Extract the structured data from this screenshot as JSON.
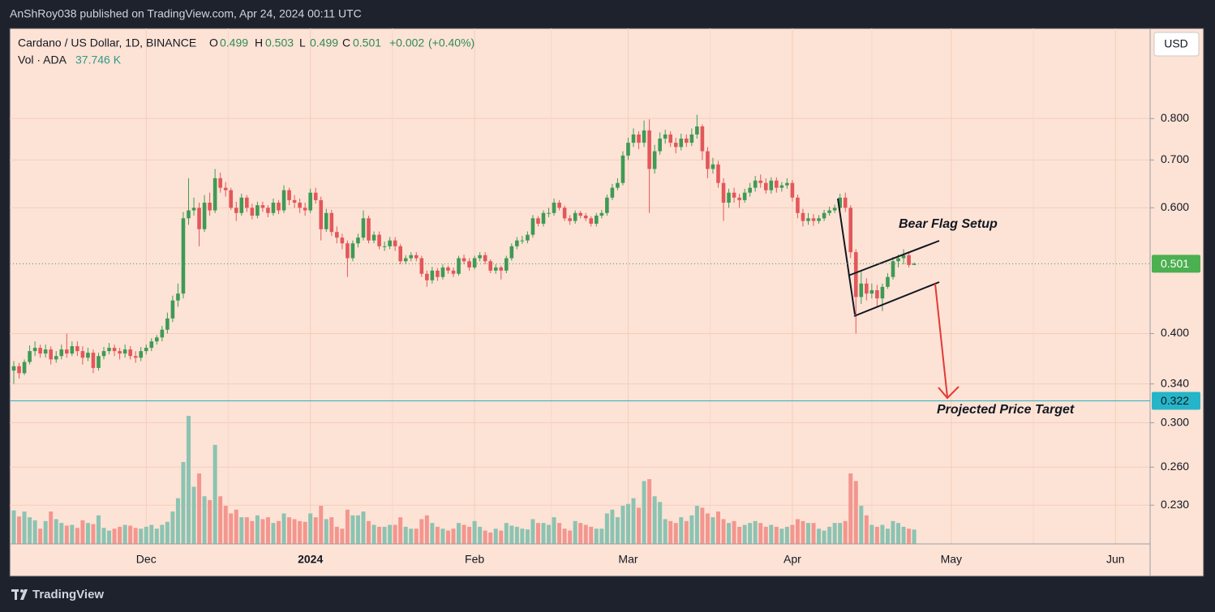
{
  "header": {
    "publisher": "AnShRoy038 published on TradingView.com, Apr 24, 2024 00:11 UTC"
  },
  "footer": {
    "brand": "TradingView"
  },
  "chart_data": {
    "type": "candlestick",
    "title": "Cardano / US Dollar, 1D, BINANCE",
    "ohlc_letters": [
      "O",
      "H",
      "L",
      "C"
    ],
    "change_label": "+0.002",
    "change_pct_label": "(+0.40%)",
    "volume_title": "Vol · ADA",
    "volume_value_label": "37.746 K",
    "currency": "USD",
    "x_labels": [
      "Dec",
      "2024",
      "Feb",
      "Mar",
      "Apr",
      "May",
      "Jun"
    ],
    "log_scale": true,
    "grid": true,
    "ylim": [
      0.203,
      1.07
    ],
    "yticks": [
      {
        "value": 0.8,
        "label": "0.800"
      },
      {
        "value": 0.7,
        "label": "0.700"
      },
      {
        "value": 0.6,
        "label": "0.600"
      },
      {
        "value": 0.4,
        "label": "0.400"
      },
      {
        "value": 0.34,
        "label": "0.340"
      },
      {
        "value": 0.3,
        "label": "0.300"
      },
      {
        "value": 0.26,
        "label": "0.260"
      },
      {
        "value": 0.23,
        "label": "0.230"
      }
    ],
    "last_price": 0.501,
    "target_price": 0.322,
    "annotations": [
      "Bear Flag Setup",
      "Projected Price Target"
    ],
    "up_color": "#3f9a55",
    "down_color": "#e3575a",
    "volume_up_color": "#8cc3b2",
    "volume_down_color": "#f3968f",
    "target_color": "#26b5c8",
    "open": [
      0.355,
      0.36,
      0.352,
      0.365,
      0.378,
      0.382,
      0.375,
      0.38,
      0.368,
      0.372,
      0.38,
      0.375,
      0.384,
      0.378,
      0.37,
      0.376,
      0.358,
      0.372,
      0.378,
      0.382,
      0.378,
      0.375,
      0.38,
      0.372,
      0.37,
      0.378,
      0.382,
      0.39,
      0.395,
      0.405,
      0.42,
      0.445,
      0.455,
      0.58,
      0.595,
      0.6,
      0.56,
      0.61,
      0.595,
      0.66,
      0.64,
      0.635,
      0.6,
      0.59,
      0.62,
      0.6,
      0.585,
      0.605,
      0.6,
      0.59,
      0.61,
      0.595,
      0.635,
      0.615,
      0.61,
      0.6,
      0.595,
      0.63,
      0.615,
      0.56,
      0.59,
      0.555,
      0.545,
      0.535,
      0.51,
      0.535,
      0.545,
      0.58,
      0.54,
      0.55,
      0.53,
      0.53,
      0.54,
      0.53,
      0.505,
      0.51,
      0.515,
      0.51,
      0.485,
      0.475,
      0.49,
      0.48,
      0.495,
      0.49,
      0.485,
      0.51,
      0.505,
      0.495,
      0.51,
      0.515,
      0.505,
      0.49,
      0.495,
      0.49,
      0.51,
      0.53,
      0.54,
      0.54,
      0.55,
      0.58,
      0.57,
      0.59,
      0.59,
      0.61,
      0.6,
      0.58,
      0.575,
      0.59,
      0.585,
      0.58,
      0.57,
      0.585,
      0.59,
      0.62,
      0.64,
      0.65,
      0.71,
      0.74,
      0.76,
      0.74,
      0.77,
      0.68,
      0.72,
      0.75,
      0.76,
      0.74,
      0.73,
      0.75,
      0.74,
      0.76,
      0.78,
      0.72,
      0.68,
      0.69,
      0.65,
      0.61,
      0.63,
      0.62,
      0.615,
      0.63,
      0.64,
      0.655,
      0.65,
      0.635,
      0.655,
      0.64,
      0.645,
      0.65,
      0.62,
      0.59,
      0.575,
      0.58,
      0.575,
      0.58,
      0.59,
      0.595,
      0.6,
      0.62,
      0.6,
      0.52,
      0.45,
      0.47,
      0.455,
      0.46,
      0.448,
      0.465,
      0.48,
      0.505,
      0.51,
      0.515,
      0.499
    ],
    "high": [
      0.366,
      0.364,
      0.368,
      0.385,
      0.39,
      0.386,
      0.386,
      0.384,
      0.378,
      0.386,
      0.4,
      0.39,
      0.39,
      0.384,
      0.382,
      0.38,
      0.376,
      0.383,
      0.388,
      0.386,
      0.382,
      0.386,
      0.384,
      0.378,
      0.383,
      0.386,
      0.394,
      0.398,
      0.41,
      0.428,
      0.452,
      0.47,
      0.592,
      0.66,
      0.62,
      0.61,
      0.625,
      0.63,
      0.68,
      0.672,
      0.652,
      0.64,
      0.612,
      0.628,
      0.625,
      0.608,
      0.612,
      0.612,
      0.605,
      0.618,
      0.615,
      0.645,
      0.64,
      0.625,
      0.618,
      0.61,
      0.638,
      0.64,
      0.622,
      0.598,
      0.596,
      0.565,
      0.552,
      0.54,
      0.54,
      0.552,
      0.595,
      0.585,
      0.556,
      0.556,
      0.538,
      0.546,
      0.546,
      0.534,
      0.515,
      0.52,
      0.52,
      0.514,
      0.49,
      0.496,
      0.494,
      0.5,
      0.498,
      0.495,
      0.514,
      0.516,
      0.51,
      0.514,
      0.52,
      0.52,
      0.508,
      0.5,
      0.498,
      0.514,
      0.535,
      0.546,
      0.548,
      0.556,
      0.586,
      0.584,
      0.595,
      0.6,
      0.618,
      0.615,
      0.604,
      0.586,
      0.595,
      0.594,
      0.59,
      0.584,
      0.59,
      0.596,
      0.626,
      0.648,
      0.66,
      0.72,
      0.752,
      0.775,
      0.768,
      0.795,
      0.798,
      0.735,
      0.765,
      0.772,
      0.768,
      0.752,
      0.762,
      0.76,
      0.775,
      0.81,
      0.785,
      0.73,
      0.705,
      0.698,
      0.66,
      0.638,
      0.64,
      0.628,
      0.638,
      0.65,
      0.665,
      0.668,
      0.66,
      0.662,
      0.662,
      0.652,
      0.66,
      0.656,
      0.626,
      0.598,
      0.59,
      0.588,
      0.586,
      0.596,
      0.602,
      0.606,
      0.628,
      0.63,
      0.605,
      0.525,
      0.49,
      0.478,
      0.47,
      0.468,
      0.47,
      0.486,
      0.512,
      0.516,
      0.525,
      0.52,
      0.503
    ],
    "low": [
      0.34,
      0.346,
      0.35,
      0.362,
      0.372,
      0.37,
      0.37,
      0.362,
      0.364,
      0.368,
      0.37,
      0.372,
      0.372,
      0.362,
      0.366,
      0.352,
      0.355,
      0.368,
      0.374,
      0.372,
      0.368,
      0.37,
      0.368,
      0.364,
      0.366,
      0.374,
      0.378,
      0.386,
      0.39,
      0.4,
      0.415,
      0.436,
      0.448,
      0.568,
      0.585,
      0.53,
      0.555,
      0.585,
      0.59,
      0.63,
      0.622,
      0.596,
      0.575,
      0.585,
      0.592,
      0.578,
      0.58,
      0.592,
      0.582,
      0.585,
      0.588,
      0.59,
      0.605,
      0.6,
      0.59,
      0.585,
      0.59,
      0.608,
      0.54,
      0.555,
      0.548,
      0.535,
      0.525,
      0.48,
      0.505,
      0.528,
      0.54,
      0.535,
      0.535,
      0.525,
      0.522,
      0.525,
      0.522,
      0.5,
      0.5,
      0.505,
      0.505,
      0.48,
      0.465,
      0.47,
      0.474,
      0.476,
      0.485,
      0.48,
      0.482,
      0.5,
      0.49,
      0.492,
      0.505,
      0.5,
      0.486,
      0.485,
      0.476,
      0.486,
      0.506,
      0.525,
      0.534,
      0.535,
      0.545,
      0.565,
      0.565,
      0.582,
      0.585,
      0.595,
      0.575,
      0.568,
      0.57,
      0.58,
      0.575,
      0.565,
      0.565,
      0.58,
      0.585,
      0.615,
      0.635,
      0.645,
      0.7,
      0.73,
      0.725,
      0.73,
      0.59,
      0.67,
      0.712,
      0.738,
      0.73,
      0.715,
      0.722,
      0.73,
      0.732,
      0.75,
      0.7,
      0.66,
      0.67,
      0.64,
      0.575,
      0.6,
      0.61,
      0.6,
      0.61,
      0.622,
      0.632,
      0.64,
      0.628,
      0.628,
      0.63,
      0.632,
      0.638,
      0.612,
      0.58,
      0.565,
      0.568,
      0.566,
      0.57,
      0.575,
      0.585,
      0.59,
      0.595,
      0.592,
      0.51,
      0.4,
      0.44,
      0.445,
      0.448,
      0.436,
      0.43,
      0.462,
      0.476,
      0.495,
      0.5,
      0.495,
      0.499
    ],
    "close": [
      0.36,
      0.352,
      0.365,
      0.378,
      0.382,
      0.375,
      0.38,
      0.368,
      0.372,
      0.38,
      0.375,
      0.384,
      0.378,
      0.37,
      0.376,
      0.358,
      0.372,
      0.378,
      0.382,
      0.378,
      0.375,
      0.38,
      0.372,
      0.37,
      0.378,
      0.382,
      0.39,
      0.395,
      0.405,
      0.42,
      0.445,
      0.455,
      0.58,
      0.595,
      0.6,
      0.56,
      0.61,
      0.595,
      0.66,
      0.64,
      0.635,
      0.6,
      0.59,
      0.62,
      0.6,
      0.585,
      0.605,
      0.6,
      0.59,
      0.61,
      0.595,
      0.635,
      0.615,
      0.61,
      0.6,
      0.595,
      0.63,
      0.615,
      0.56,
      0.59,
      0.555,
      0.545,
      0.535,
      0.51,
      0.535,
      0.545,
      0.58,
      0.54,
      0.55,
      0.53,
      0.53,
      0.54,
      0.53,
      0.505,
      0.51,
      0.515,
      0.51,
      0.485,
      0.475,
      0.49,
      0.48,
      0.495,
      0.49,
      0.485,
      0.51,
      0.505,
      0.495,
      0.51,
      0.515,
      0.505,
      0.49,
      0.495,
      0.49,
      0.51,
      0.53,
      0.54,
      0.54,
      0.55,
      0.58,
      0.57,
      0.59,
      0.59,
      0.61,
      0.6,
      0.58,
      0.575,
      0.59,
      0.585,
      0.58,
      0.57,
      0.585,
      0.59,
      0.62,
      0.64,
      0.65,
      0.71,
      0.74,
      0.76,
      0.74,
      0.77,
      0.68,
      0.72,
      0.75,
      0.76,
      0.74,
      0.73,
      0.75,
      0.74,
      0.76,
      0.78,
      0.72,
      0.68,
      0.69,
      0.65,
      0.61,
      0.63,
      0.62,
      0.615,
      0.63,
      0.64,
      0.655,
      0.65,
      0.635,
      0.655,
      0.64,
      0.645,
      0.65,
      0.62,
      0.59,
      0.575,
      0.58,
      0.575,
      0.58,
      0.59,
      0.595,
      0.6,
      0.62,
      0.6,
      0.52,
      0.45,
      0.47,
      0.455,
      0.46,
      0.448,
      0.465,
      0.48,
      0.505,
      0.51,
      0.515,
      0.499,
      0.501
    ],
    "volume": [
      88,
      72,
      85,
      70,
      62,
      40,
      60,
      85,
      65,
      55,
      48,
      50,
      42,
      62,
      55,
      52,
      75,
      42,
      35,
      40,
      45,
      50,
      48,
      42,
      40,
      45,
      50,
      40,
      50,
      58,
      85,
      120,
      215,
      336,
      150,
      185,
      125,
      115,
      260,
      125,
      100,
      80,
      90,
      70,
      70,
      60,
      75,
      65,
      70,
      55,
      60,
      80,
      70,
      65,
      60,
      58,
      80,
      70,
      100,
      65,
      70,
      45,
      40,
      90,
      75,
      75,
      85,
      60,
      50,
      45,
      45,
      50,
      50,
      70,
      45,
      40,
      40,
      65,
      75,
      55,
      45,
      40,
      35,
      40,
      55,
      50,
      45,
      60,
      45,
      35,
      30,
      40,
      35,
      55,
      48,
      45,
      40,
      38,
      65,
      55,
      55,
      50,
      70,
      55,
      40,
      35,
      60,
      55,
      50,
      45,
      40,
      40,
      80,
      90,
      70,
      100,
      105,
      120,
      95,
      165,
      170,
      125,
      110,
      65,
      60,
      55,
      70,
      60,
      75,
      100,
      95,
      80,
      70,
      85,
      65,
      55,
      60,
      45,
      50,
      55,
      60,
      55,
      45,
      50,
      45,
      40,
      45,
      50,
      65,
      60,
      55,
      55,
      40,
      35,
      45,
      55,
      55,
      60,
      185,
      165,
      100,
      75,
      50,
      45,
      50,
      40,
      60,
      55,
      45,
      40,
      37.746
    ]
  }
}
